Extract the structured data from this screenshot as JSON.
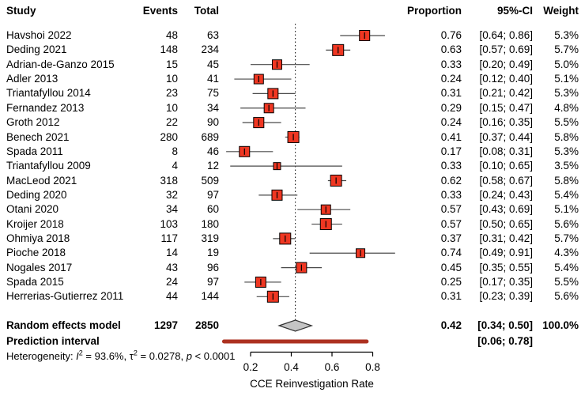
{
  "chart_data": {
    "type": "forest",
    "title": "",
    "xlabel": "CCE Reinvestigation Rate",
    "columns": [
      "Study",
      "Events",
      "Total",
      "Proportion",
      "95%-CI",
      "Weight"
    ],
    "x_ticks": [
      0.2,
      0.4,
      0.6,
      0.8
    ],
    "axis_range": [
      0.2,
      0.8
    ],
    "reference_line": 0.42,
    "studies": [
      {
        "name": "Havshoi 2022",
        "events": 48,
        "total": 63,
        "proportion": 0.76,
        "ci": [
          0.64,
          0.86
        ],
        "weight": 5.3
      },
      {
        "name": "Deding 2021",
        "events": 148,
        "total": 234,
        "proportion": 0.63,
        "ci": [
          0.57,
          0.69
        ],
        "weight": 5.7
      },
      {
        "name": "Adrian-de-Ganzo 2015",
        "events": 15,
        "total": 45,
        "proportion": 0.33,
        "ci": [
          0.2,
          0.49
        ],
        "weight": 5.0
      },
      {
        "name": "Adler 2013",
        "events": 10,
        "total": 41,
        "proportion": 0.24,
        "ci": [
          0.12,
          0.4
        ],
        "weight": 5.1
      },
      {
        "name": "Triantafyllou 2014",
        "events": 23,
        "total": 75,
        "proportion": 0.31,
        "ci": [
          0.21,
          0.42
        ],
        "weight": 5.3
      },
      {
        "name": "Fernandez 2013",
        "events": 10,
        "total": 34,
        "proportion": 0.29,
        "ci": [
          0.15,
          0.47
        ],
        "weight": 4.8
      },
      {
        "name": "Groth 2012",
        "events": 22,
        "total": 90,
        "proportion": 0.24,
        "ci": [
          0.16,
          0.35
        ],
        "weight": 5.5
      },
      {
        "name": "Benech 2021",
        "events": 280,
        "total": 689,
        "proportion": 0.41,
        "ci": [
          0.37,
          0.44
        ],
        "weight": 5.8
      },
      {
        "name": "Spada 2011",
        "events": 8,
        "total": 46,
        "proportion": 0.17,
        "ci": [
          0.08,
          0.31
        ],
        "weight": 5.3
      },
      {
        "name": "Triantafyllou 2009",
        "events": 4,
        "total": 12,
        "proportion": 0.33,
        "ci": [
          0.1,
          0.65
        ],
        "weight": 3.5
      },
      {
        "name": "MacLeod 2021",
        "events": 318,
        "total": 509,
        "proportion": 0.62,
        "ci": [
          0.58,
          0.67
        ],
        "weight": 5.8
      },
      {
        "name": "Deding 2020",
        "events": 32,
        "total": 97,
        "proportion": 0.33,
        "ci": [
          0.24,
          0.43
        ],
        "weight": 5.4
      },
      {
        "name": "Otani 2020",
        "events": 34,
        "total": 60,
        "proportion": 0.57,
        "ci": [
          0.43,
          0.69
        ],
        "weight": 5.1
      },
      {
        "name": "Kroijer 2018",
        "events": 103,
        "total": 180,
        "proportion": 0.57,
        "ci": [
          0.5,
          0.65
        ],
        "weight": 5.6
      },
      {
        "name": "Ohmiya 2018",
        "events": 117,
        "total": 319,
        "proportion": 0.37,
        "ci": [
          0.31,
          0.42
        ],
        "weight": 5.7
      },
      {
        "name": "Pioche 2018",
        "events": 14,
        "total": 19,
        "proportion": 0.74,
        "ci": [
          0.49,
          0.91
        ],
        "weight": 4.3
      },
      {
        "name": "Nogales 2017",
        "events": 43,
        "total": 96,
        "proportion": 0.45,
        "ci": [
          0.35,
          0.55
        ],
        "weight": 5.4
      },
      {
        "name": "Spada 2015",
        "events": 24,
        "total": 97,
        "proportion": 0.25,
        "ci": [
          0.17,
          0.35
        ],
        "weight": 5.5
      },
      {
        "name": "Herrerias-Gutierrez 2011",
        "events": 44,
        "total": 144,
        "proportion": 0.31,
        "ci": [
          0.23,
          0.39
        ],
        "weight": 5.6
      }
    ],
    "summary": {
      "label": "Random effects model",
      "events": 1297,
      "total": 2850,
      "proportion": 0.42,
      "ci": [
        0.34,
        0.5
      ],
      "weight": 100.0
    },
    "prediction_interval": {
      "label": "Prediction interval",
      "ci": [
        0.06,
        0.78
      ]
    },
    "heterogeneity": {
      "prefix": "Heterogeneity: ",
      "i_label": "I",
      "i_sup": "2",
      "i_value": " = 93.6%, ",
      "tau_label": "τ",
      "tau_sup": "2",
      "tau_value": " = 0.0278, ",
      "p_label": "p",
      "p_value": " < 0.0001"
    },
    "colors": {
      "square": "#EF3722",
      "square_stroke": "#000000",
      "ci_line": "#4A4A4A",
      "diamond_fill": "#C4C4C4",
      "diamond_stroke": "#333333",
      "prediction_bar": "#AD3120",
      "reference_line": "#000000",
      "axis": "#000000"
    }
  }
}
